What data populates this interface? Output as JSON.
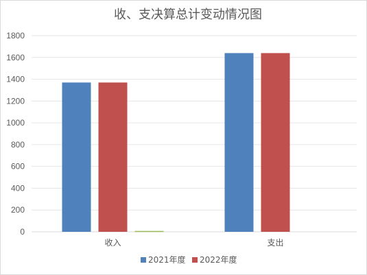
{
  "chart_data": {
    "type": "bar",
    "title": "收、支决算总计变动情况图",
    "categories": [
      "收入",
      "支出"
    ],
    "series": [
      {
        "name": "2021年度",
        "color": "#4f81bd",
        "values": [
          1370,
          1640
        ]
      },
      {
        "name": "2022年度",
        "color": "#c0504d",
        "values": [
          1370,
          1640
        ]
      },
      {
        "color": "#9bbb59",
        "values": [
          8,
          0
        ]
      }
    ],
    "ylim": [
      0,
      1800
    ],
    "yticks": [
      "0",
      "200",
      "400",
      "600",
      "800",
      "1000",
      "1200",
      "1400",
      "1600",
      "1800"
    ],
    "grid": true,
    "legend_position": "bottom"
  }
}
